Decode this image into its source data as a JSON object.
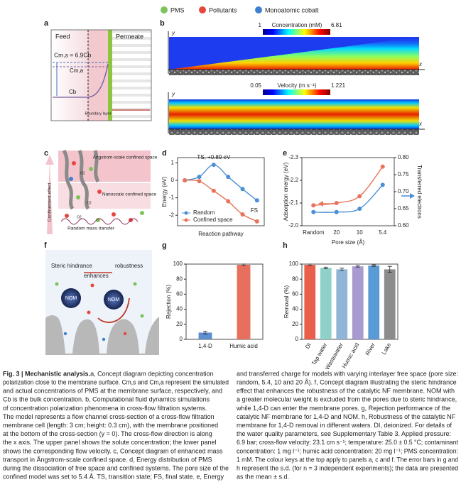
{
  "legend": [
    {
      "label": "PMS",
      "color": "#7cc35a"
    },
    {
      "label": "Pollutants",
      "color": "#e8453c"
    },
    {
      "label": "Monoatomic cobalt",
      "color": "#3f7fd0"
    }
  ],
  "panel_a": {
    "letter": "a",
    "feed": "Feed",
    "permeate": "Permeate",
    "cms": "Cm,s = 6.9Cb",
    "cma": "Cm,a",
    "cb": "Cb",
    "boundary": "Boundary layer"
  },
  "panel_b": {
    "letter": "b",
    "y_axis": "y",
    "x_axis": "x",
    "concentration": {
      "title": "Concentration (mM)",
      "range": [
        1,
        6.81
      ]
    },
    "velocity": {
      "title": "Velocity (m s⁻¹)",
      "range": [
        0.05,
        1.221
      ]
    }
  },
  "panel_c": {
    "letter": "c",
    "angstrom": "Ångstrom-scale confined space",
    "nanoscale": "Nanoscale confined space",
    "random": "Random mass transfer",
    "effect": "Confinement effect",
    "o2": "O2"
  },
  "panel_f": {
    "letter": "f",
    "steric": "Steric hindrance",
    "enhances": "enhances",
    "robustness": "robustness",
    "nom": "NOM"
  },
  "chart_data": [
    {
      "panel": "d",
      "type": "line",
      "y_label": "Energy (eV)",
      "x_label": "Reaction pathway",
      "categories": [
        null,
        null,
        null,
        null,
        null,
        null
      ],
      "series": [
        {
          "name": "Random",
          "color": "#4a8fd4",
          "values": [
            0,
            0.2,
            0.89,
            0.2,
            -0.5,
            -1.15
          ]
        },
        {
          "name": "Confined space",
          "color": "#e8735a",
          "values": [
            0,
            -0.05,
            -0.6,
            -1.2,
            -1.95,
            -2.35
          ]
        }
      ],
      "ylim": [
        -2.6,
        1.3
      ],
      "yticks": [
        -2,
        -1,
        0,
        1
      ],
      "legend": "lower left",
      "annotations": [
        "TS, +0.89 eV",
        "FS"
      ]
    },
    {
      "panel": "e",
      "type": "line",
      "y_label": "Adsorption energy (eV)",
      "y2_label": "Transferred electrons",
      "x_label": "Pore size (Å)",
      "categories": [
        "Random",
        "20",
        "10",
        "5.4"
      ],
      "series": [
        {
          "color": "#e8735a",
          "values": [
            -2.09,
            -2.1,
            -2.13,
            -2.26
          ]
        },
        {
          "color": "#4a8fd4",
          "values": [
            0.64,
            0.64,
            0.65,
            0.72
          ],
          "axis": "y2"
        }
      ],
      "ylim": [
        -2.0,
        -2.3
      ],
      "yticks": [
        {
          "value": -2,
          "label": "-2.0"
        },
        -2.1,
        -2.2,
        -2.3
      ],
      "y2lim": [
        0.6,
        0.8
      ],
      "y2ticks": [
        {
          "value": 0.6,
          "label": "0.60"
        },
        0.65,
        {
          "value": 0.7,
          "label": "0.70"
        },
        0.75,
        {
          "value": 0.8,
          "label": "0.80"
        }
      ]
    },
    {
      "panel": "g",
      "type": "bar",
      "y_label": "Rejection (%)",
      "categories": [
        "1,4-D",
        "Humic acid"
      ],
      "values": [
        9,
        99
      ],
      "errors": [
        2,
        1
      ],
      "colors": [
        "#5b8fd0",
        "#e86f5e"
      ],
      "ylim": [
        0,
        100
      ],
      "yticks": [
        0,
        20,
        40,
        60,
        80,
        100
      ]
    },
    {
      "panel": "h",
      "type": "bar",
      "y_label": "Removal (%)",
      "categories": [
        "DI",
        "Tap water",
        "Wastewater",
        "Humic acid",
        "River",
        "Lake"
      ],
      "values": [
        99,
        95,
        93,
        97,
        98,
        93
      ],
      "errors": [
        1,
        1,
        1.5,
        1,
        1,
        4
      ],
      "colors": [
        "#e8604c",
        "#8fd0c8",
        "#8fb6d6",
        "#a99ad0",
        "#5b9bd5",
        "#8c8c8c"
      ],
      "ylim": [
        0,
        100
      ],
      "yticks": [
        0,
        20,
        40,
        60,
        80,
        100
      ]
    }
  ],
  "caption": {
    "fig_label": "Fig. 3 | Mechanistic analysis.",
    "left": [
      " a, Concept diagram depicting concentration",
      "polarization close to the membrane surface. Cm,s and Cm,a represent the simulated",
      "and actual concentrations of PMS at the membrane surface, respectively, and",
      "Cb is the bulk concentration. b, Computational fluid dynamics simulations",
      "of concentration polarization phenomena in cross-flow filtration systems.",
      "The model represents a flow channel cross-section of a cross-flow filtration",
      "membrane cell (length: 3 cm; height: 0.3 cm), with the membrane positioned",
      "at the bottom of the cross-section (y = 0). The cross-flow direction is along",
      "the x axis. The upper panel shows the solute concentration; the lower panel",
      "shows the corresponding flow velocity. c, Concept diagram of enhanced mass",
      "transport in Ångstrom-scale confined space. d, Energy distribution of PMS",
      "during the dissociation of free space and confined systems. The pore size of the",
      "confined model was set to 5.4 Å. TS, transition state; FS, final state. e, Energy"
    ],
    "right": [
      "and transferred charge for models with varying interlayer free space (pore size:",
      "random, 5.4, 10 and 20 Å). f, Concept diagram illustrating the steric hindrance",
      "effect that enhances the robustness of the catalytic NF membrane. NOM with",
      "a greater molecular weight is excluded from the pores due to steric hindrance,",
      "while 1,4-D can enter the membrane pores. g, Rejection performance of the",
      "catalytic NF membrane for 1,4-D and NOM. h, Robustness of the catalytic NF",
      "membrane for 1,4-D removal in different waters. DI, deionized. For details of",
      "the water quality parameters, see Supplementary Table 3. Applied pressure:",
      "6.9 bar; cross-flow velocity: 23.1 cm s⁻¹; temperature: 25.0 ± 0.5 °C; contaminant",
      "concentration: 1 mg l⁻¹; humic acid concentration: 20 mg l⁻¹; PMS concentration:",
      "1 mM. The colour keys at the top apply to panels a, c and f. The error bars in g and",
      "h represent the s.d. (for n = 3 independent experiments); the data are presented",
      "as the mean ± s.d."
    ]
  }
}
